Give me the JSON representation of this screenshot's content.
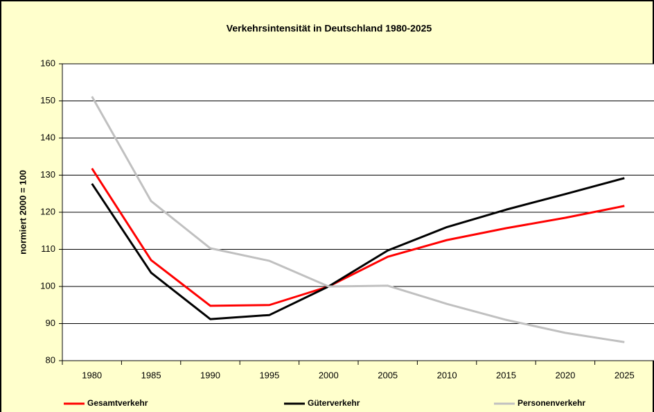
{
  "chart_data": {
    "type": "line",
    "title": "Verkehrsintensität in Deutschland 1980-2025",
    "y_label": "normiert 2000 = 100",
    "categories": [
      "1980",
      "1985",
      "1990",
      "1995",
      "2000",
      "2005",
      "2010",
      "2015",
      "2020",
      "2025"
    ],
    "series": [
      {
        "name": "Gesamtverkehr",
        "color": "#ff0000",
        "values": [
          131.8,
          107.1,
          94.8,
          95,
          100,
          108,
          112.5,
          115.7,
          118.5,
          121.7
        ]
      },
      {
        "name": "Güterverkehr",
        "color": "#000000",
        "values": [
          127.7,
          103.7,
          91.2,
          92.3,
          100,
          109.7,
          116,
          120.7,
          124.9,
          129.2
        ]
      },
      {
        "name": "Personenverkehr",
        "color": "#c0c0c0",
        "values": [
          151.2,
          123,
          110.3,
          106.9,
          100,
          100.2,
          95.3,
          91,
          87.5,
          85
        ]
      }
    ],
    "ylim": [
      80,
      160
    ],
    "yticks": [
      80,
      90,
      100,
      110,
      120,
      130,
      140,
      150,
      160
    ],
    "grid": true,
    "legend": "bottom"
  }
}
